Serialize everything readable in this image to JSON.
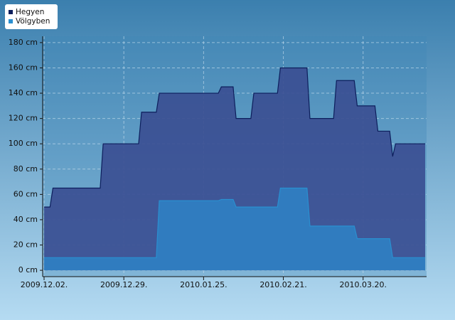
{
  "chart_data": {
    "type": "area",
    "x": [
      "2009-12-02",
      "2009-12-04",
      "2009-12-05",
      "2009-12-21",
      "2009-12-22",
      "2010-01-03",
      "2010-01-04",
      "2010-01-09",
      "2010-01-10",
      "2010-01-30",
      "2010-01-31",
      "2010-02-04",
      "2010-02-05",
      "2010-02-10",
      "2010-02-11",
      "2010-02-19",
      "2010-02-20",
      "2010-03-01",
      "2010-03-02",
      "2010-03-10",
      "2010-03-11",
      "2010-03-17",
      "2010-03-18",
      "2010-03-24",
      "2010-03-25",
      "2010-03-29",
      "2010-03-30",
      "2010-03-31",
      "2010-04-10"
    ],
    "series": [
      {
        "name": "Hegyen",
        "color": "#0d1e5c",
        "fill": "#3b4f92",
        "values": [
          50,
          50,
          65,
          65,
          100,
          100,
          125,
          125,
          140,
          140,
          145,
          145,
          120,
          120,
          140,
          140,
          160,
          160,
          120,
          120,
          150,
          150,
          130,
          130,
          110,
          110,
          90,
          100,
          100
        ]
      },
      {
        "name": "Völgyben",
        "color": "#2a8fd0",
        "fill": "#2f7fc2",
        "values": [
          10,
          10,
          10,
          10,
          10,
          10,
          10,
          10,
          55,
          55,
          56,
          56,
          50,
          50,
          50,
          50,
          65,
          65,
          35,
          35,
          35,
          35,
          25,
          25,
          25,
          25,
          10,
          10,
          10
        ]
      }
    ],
    "xlim": [
      "2009-12-02",
      "2010-04-10"
    ],
    "xticks": [
      {
        "value": "2009-12-02",
        "label": "2009.12.02."
      },
      {
        "value": "2009-12-29",
        "label": "2009.12.29."
      },
      {
        "value": "2010-01-25",
        "label": "2010.01.25."
      },
      {
        "value": "2010-02-21",
        "label": "2010.02.21."
      },
      {
        "value": "2010-03-20",
        "label": "2010.03.20."
      }
    ],
    "ylim": [
      -5,
      185
    ],
    "yticks": [
      {
        "value": 0,
        "label": "0 cm"
      },
      {
        "value": 20,
        "label": "20 cm"
      },
      {
        "value": 40,
        "label": "40 cm"
      },
      {
        "value": 60,
        "label": "60 cm"
      },
      {
        "value": 80,
        "label": "80 cm"
      },
      {
        "value": 100,
        "label": "100 cm"
      },
      {
        "value": 120,
        "label": "120 cm"
      },
      {
        "value": 140,
        "label": "140 cm"
      },
      {
        "value": 160,
        "label": "160 cm"
      },
      {
        "value": 180,
        "label": "180 cm"
      }
    ],
    "grid": true,
    "legend": "top-left"
  }
}
